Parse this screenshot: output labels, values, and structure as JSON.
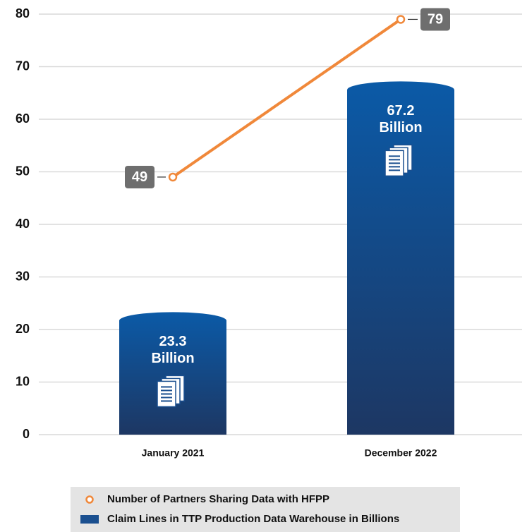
{
  "chart_data": {
    "type": "bar",
    "categories": [
      "January 2021",
      "December 2022"
    ],
    "ylim": [
      0,
      80
    ],
    "yticks": [
      0,
      10,
      20,
      30,
      40,
      50,
      60,
      70,
      80
    ],
    "grid": true,
    "series": [
      {
        "name": "Number of Partners Sharing Data with HFPP",
        "type": "line",
        "color": "#f0883a",
        "values": [
          49,
          79
        ]
      },
      {
        "name": "Claim Lines in TTP Production Data Warehouse in Billions",
        "type": "bar",
        "color": "#1a4f8f",
        "values": [
          23.3,
          67.2
        ],
        "value_labels": [
          "23.3 Billion",
          "67.2 Billion"
        ]
      }
    ]
  }
}
